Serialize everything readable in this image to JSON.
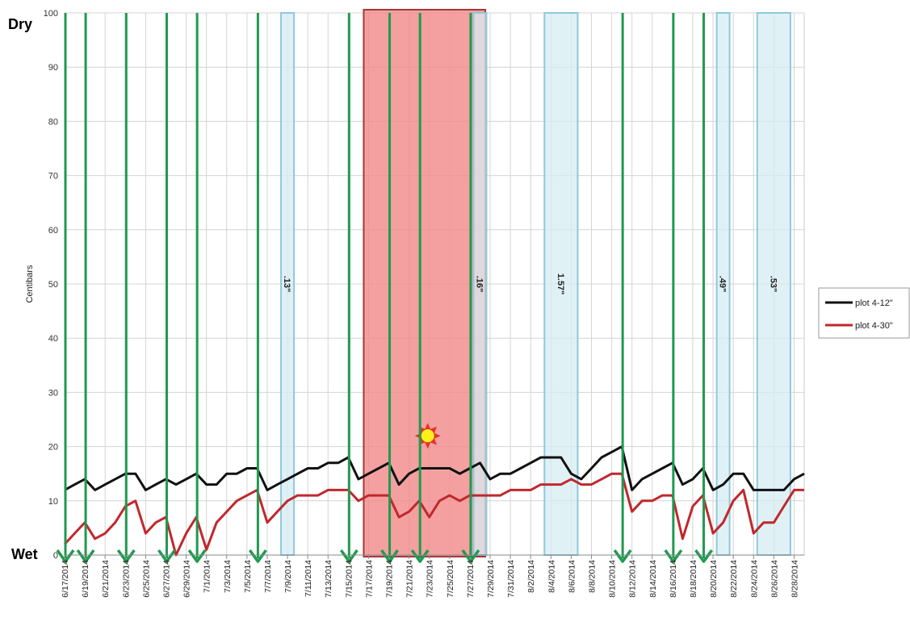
{
  "chart_data": {
    "type": "line",
    "ylabel": "Centibars",
    "top_label": "Dry",
    "bottom_label": "Wet",
    "ylim": [
      0,
      100
    ],
    "y_ticks": [
      0,
      10,
      20,
      30,
      40,
      50,
      60,
      70,
      80,
      90,
      100
    ],
    "x_start": "6/17/2014",
    "x_end": "8/29/2014",
    "x_tick_labels": [
      "6/17/2014",
      "6/19/2014",
      "6/21/2014",
      "6/23/2014",
      "6/25/2014",
      "6/27/2014",
      "6/29/2014",
      "7/1/2014",
      "7/3/2014",
      "7/5/2014",
      "7/7/2014",
      "7/9/2014",
      "7/11/2014",
      "7/13/2014",
      "7/15/2014",
      "7/17/2014",
      "7/19/2014",
      "7/21/2014",
      "7/23/2014",
      "7/25/2014",
      "7/27/2014",
      "7/29/2014",
      "7/31/2014",
      "8/2/2014",
      "8/4/2014",
      "8/6/2014",
      "8/8/2014",
      "8/10/2014",
      "8/12/2014",
      "8/14/2014",
      "8/16/2014",
      "8/18/2014",
      "8/20/2014",
      "8/22/2014",
      "8/24/2014",
      "8/26/2014",
      "8/28/2014"
    ],
    "grid": true,
    "legend_position": "right",
    "series": [
      {
        "name": "plot 4-12\"",
        "color": "#111111",
        "points": [
          [
            "6/17/2014",
            12
          ],
          [
            "6/18/2014",
            13
          ],
          [
            "6/19/2014",
            14
          ],
          [
            "6/20/2014",
            12
          ],
          [
            "6/21/2014",
            13
          ],
          [
            "6/22/2014",
            14
          ],
          [
            "6/23/2014",
            15
          ],
          [
            "6/24/2014",
            15
          ],
          [
            "6/25/2014",
            12
          ],
          [
            "6/26/2014",
            13
          ],
          [
            "6/27/2014",
            14
          ],
          [
            "6/28/2014",
            13
          ],
          [
            "6/29/2014",
            14
          ],
          [
            "6/30/2014",
            15
          ],
          [
            "7/1/2014",
            13
          ],
          [
            "7/2/2014",
            13
          ],
          [
            "7/3/2014",
            15
          ],
          [
            "7/4/2014",
            15
          ],
          [
            "7/5/2014",
            16
          ],
          [
            "7/6/2014",
            16
          ],
          [
            "7/7/2014",
            12
          ],
          [
            "7/8/2014",
            13
          ],
          [
            "7/9/2014",
            14
          ],
          [
            "7/10/2014",
            15
          ],
          [
            "7/11/2014",
            16
          ],
          [
            "7/12/2014",
            16
          ],
          [
            "7/13/2014",
            17
          ],
          [
            "7/14/2014",
            17
          ],
          [
            "7/15/2014",
            18
          ],
          [
            "7/16/2014",
            14
          ],
          [
            "7/17/2014",
            15
          ],
          [
            "7/18/2014",
            16
          ],
          [
            "7/19/2014",
            17
          ],
          [
            "7/20/2014",
            13
          ],
          [
            "7/21/2014",
            15
          ],
          [
            "7/22/2014",
            16
          ],
          [
            "7/23/2014",
            16
          ],
          [
            "7/24/2014",
            16
          ],
          [
            "7/25/2014",
            16
          ],
          [
            "7/26/2014",
            15
          ],
          [
            "7/27/2014",
            16
          ],
          [
            "7/28/2014",
            17
          ],
          [
            "7/29/2014",
            14
          ],
          [
            "7/30/2014",
            15
          ],
          [
            "7/31/2014",
            15
          ],
          [
            "8/1/2014",
            16
          ],
          [
            "8/2/2014",
            17
          ],
          [
            "8/3/2014",
            18
          ],
          [
            "8/4/2014",
            18
          ],
          [
            "8/5/2014",
            18
          ],
          [
            "8/6/2014",
            15
          ],
          [
            "8/7/2014",
            14
          ],
          [
            "8/8/2014",
            16
          ],
          [
            "8/9/2014",
            18
          ],
          [
            "8/10/2014",
            19
          ],
          [
            "8/11/2014",
            20
          ],
          [
            "8/12/2014",
            12
          ],
          [
            "8/13/2014",
            14
          ],
          [
            "8/14/2014",
            15
          ],
          [
            "8/15/2014",
            16
          ],
          [
            "8/16/2014",
            17
          ],
          [
            "8/17/2014",
            13
          ],
          [
            "8/18/2014",
            14
          ],
          [
            "8/19/2014",
            16
          ],
          [
            "8/20/2014",
            12
          ],
          [
            "8/21/2014",
            13
          ],
          [
            "8/22/2014",
            15
          ],
          [
            "8/23/2014",
            15
          ],
          [
            "8/24/2014",
            12
          ],
          [
            "8/25/2014",
            12
          ],
          [
            "8/26/2014",
            12
          ],
          [
            "8/27/2014",
            12
          ],
          [
            "8/28/2014",
            14
          ],
          [
            "8/29/2014",
            15
          ]
        ]
      },
      {
        "name": "plot 4-30\"",
        "color": "#c0282d",
        "points": [
          [
            "6/17/2014",
            2
          ],
          [
            "6/18/2014",
            4
          ],
          [
            "6/19/2014",
            6
          ],
          [
            "6/20/2014",
            3
          ],
          [
            "6/21/2014",
            4
          ],
          [
            "6/22/2014",
            6
          ],
          [
            "6/23/2014",
            9
          ],
          [
            "6/24/2014",
            10
          ],
          [
            "6/25/2014",
            4
          ],
          [
            "6/26/2014",
            6
          ],
          [
            "6/27/2014",
            7
          ],
          [
            "6/28/2014",
            0
          ],
          [
            "6/29/2014",
            4
          ],
          [
            "6/30/2014",
            7
          ],
          [
            "7/1/2014",
            1
          ],
          [
            "7/2/2014",
            6
          ],
          [
            "7/3/2014",
            8
          ],
          [
            "7/4/2014",
            10
          ],
          [
            "7/5/2014",
            11
          ],
          [
            "7/6/2014",
            12
          ],
          [
            "7/7/2014",
            6
          ],
          [
            "7/8/2014",
            8
          ],
          [
            "7/9/2014",
            10
          ],
          [
            "7/10/2014",
            11
          ],
          [
            "7/11/2014",
            11
          ],
          [
            "7/12/2014",
            11
          ],
          [
            "7/13/2014",
            12
          ],
          [
            "7/14/2014",
            12
          ],
          [
            "7/15/2014",
            12
          ],
          [
            "7/16/2014",
            10
          ],
          [
            "7/17/2014",
            11
          ],
          [
            "7/18/2014",
            11
          ],
          [
            "7/19/2014",
            11
          ],
          [
            "7/20/2014",
            7
          ],
          [
            "7/21/2014",
            8
          ],
          [
            "7/22/2014",
            10
          ],
          [
            "7/23/2014",
            7
          ],
          [
            "7/24/2014",
            10
          ],
          [
            "7/25/2014",
            11
          ],
          [
            "7/26/2014",
            10
          ],
          [
            "7/27/2014",
            11
          ],
          [
            "7/28/2014",
            11
          ],
          [
            "7/29/2014",
            11
          ],
          [
            "7/30/2014",
            11
          ],
          [
            "7/31/2014",
            12
          ],
          [
            "8/1/2014",
            12
          ],
          [
            "8/2/2014",
            12
          ],
          [
            "8/3/2014",
            13
          ],
          [
            "8/4/2014",
            13
          ],
          [
            "8/5/2014",
            13
          ],
          [
            "8/6/2014",
            14
          ],
          [
            "8/7/2014",
            13
          ],
          [
            "8/8/2014",
            13
          ],
          [
            "8/9/2014",
            14
          ],
          [
            "8/10/2014",
            15
          ],
          [
            "8/11/2014",
            15
          ],
          [
            "8/12/2014",
            8
          ],
          [
            "8/13/2014",
            10
          ],
          [
            "8/14/2014",
            10
          ],
          [
            "8/15/2014",
            11
          ],
          [
            "8/16/2014",
            11
          ],
          [
            "8/17/2014",
            3
          ],
          [
            "8/18/2014",
            9
          ],
          [
            "8/19/2014",
            11
          ],
          [
            "8/20/2014",
            4
          ],
          [
            "8/21/2014",
            6
          ],
          [
            "8/22/2014",
            10
          ],
          [
            "8/23/2014",
            12
          ],
          [
            "8/24/2014",
            4
          ],
          [
            "8/25/2014",
            6
          ],
          [
            "8/26/2014",
            6
          ],
          [
            "8/27/2014",
            9
          ],
          [
            "8/28/2014",
            12
          ],
          [
            "8/29/2014",
            12
          ]
        ]
      }
    ],
    "heat_period": {
      "start": "7/17/2014",
      "end": "7/29/2014",
      "color": "#f28b8b",
      "border": "#a33a3a"
    },
    "heat_marker": {
      "date": "7/23/2014",
      "value": 22
    },
    "rain_events": [
      {
        "start": "7/9/2014",
        "end": "7/9/2014",
        "label": ".13\""
      },
      {
        "start": "7/28/2014",
        "end": "7/28/2014",
        "label": ".16\""
      },
      {
        "start": "8/4/2014",
        "end": "8/6/2014",
        "label": "1.57\""
      },
      {
        "start": "8/21/2014",
        "end": "8/21/2014",
        "label": ".49\""
      },
      {
        "start": "8/25/2014",
        "end": "8/27/2014",
        "label": ".53\""
      }
    ],
    "irrigation_events": [
      "6/17/2014",
      "6/19/2014",
      "6/23/2014",
      "6/27/2014",
      "6/30/2014",
      "7/6/2014",
      "7/15/2014",
      "7/19/2014",
      "7/22/2014",
      "7/27/2014",
      "8/11/2014",
      "8/16/2014",
      "8/19/2014"
    ],
    "colors": {
      "irrigation": "#1f9a4f",
      "rain_fill": "#d6ecf3",
      "rain_stroke": "#8ec9db",
      "grid": "#d4d4d4"
    }
  }
}
